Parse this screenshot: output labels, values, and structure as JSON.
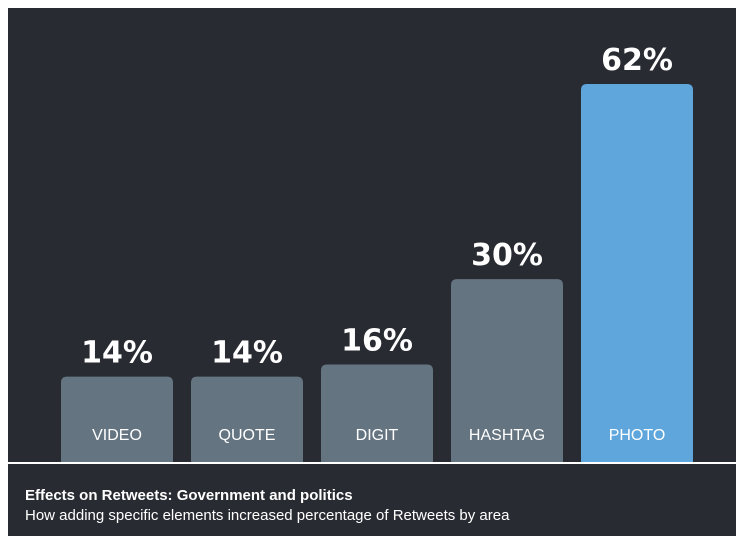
{
  "chart_data": {
    "type": "bar",
    "title": "Effects on Retweets: Government and politics",
    "subtitle": "How adding specific elements increased percentage of Retweets by area",
    "categories": [
      "VIDEO",
      "QUOTE",
      "DIGIT",
      "HASHTAG",
      "PHOTO"
    ],
    "values": [
      14,
      14,
      16,
      30,
      62
    ],
    "value_labels": [
      "14%",
      "14%",
      "16%",
      "30%",
      "62%"
    ],
    "unit": "%",
    "ylim": [
      0,
      62
    ],
    "grid": false,
    "legend": "none",
    "colors": {
      "background": "#282c32",
      "bar_default": "#657481",
      "bar_highlight": "#5fa6dc",
      "text": "#ffffff",
      "baseline": "#ffffff"
    },
    "highlight_category": "PHOTO"
  }
}
